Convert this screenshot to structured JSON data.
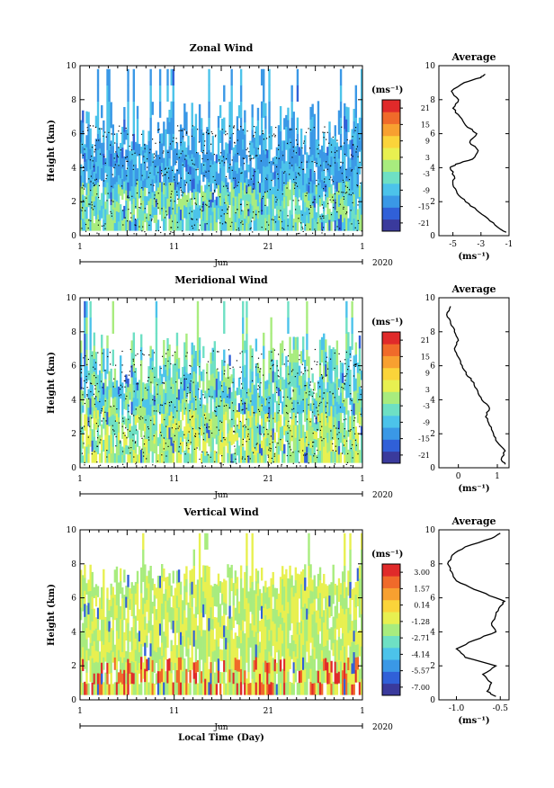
{
  "figure": {
    "bottom_xlabel": "Local Time (Day)",
    "colors": {
      "colormap": [
        "#3a3a9c",
        "#3060d8",
        "#3a98e6",
        "#4cc3ea",
        "#6ee0c4",
        "#a8ec7e",
        "#e8f050",
        "#fbd43a",
        "#f8a030",
        "#f06a2a",
        "#e02a2a"
      ],
      "background": "#ffffff",
      "contour": "#000000"
    }
  },
  "chart_data": [
    {
      "type": "heatmap",
      "title": "Zonal Wind",
      "xlabel": "Jun",
      "year_label": "2020",
      "ylabel": "Height (km)",
      "xticks": [
        "1",
        "11",
        "21",
        "1"
      ],
      "yticks": [
        "0",
        "2",
        "4",
        "6",
        "8",
        "10"
      ],
      "ylim": [
        0,
        10
      ],
      "colorbar": {
        "unit": "(ms⁻¹)",
        "labels": [
          "21",
          "15",
          "9",
          "3",
          "-3",
          "-9",
          "-15",
          "-21"
        ],
        "range": [
          -24,
          24
        ]
      },
      "profile": {
        "title": "Average",
        "xlabel": "(ms⁻¹)",
        "xticks": [
          "-5",
          "-3",
          "-1"
        ],
        "xlim": [
          -6,
          -1
        ],
        "yticks": [
          "0",
          "2",
          "4",
          "6",
          "8",
          "10"
        ],
        "heights": [
          0.2,
          0.5,
          1.0,
          1.5,
          2.0,
          2.5,
          3.0,
          3.5,
          4.0,
          4.2,
          4.5,
          5.0,
          5.5,
          6.0,
          6.5,
          7.0,
          7.5,
          8.0,
          8.5,
          9.0,
          9.3,
          9.5
        ],
        "values": [
          -1.2,
          -1.8,
          -2.5,
          -3.3,
          -4.1,
          -4.7,
          -5.0,
          -4.9,
          -5.2,
          -4.8,
          -3.6,
          -3.2,
          -3.8,
          -3.3,
          -4.1,
          -4.5,
          -5.0,
          -4.6,
          -5.1,
          -4.2,
          -3.0,
          -2.7
        ]
      }
    },
    {
      "type": "heatmap",
      "title": "Meridional Wind",
      "xlabel": "Jun",
      "year_label": "2020",
      "ylabel": "Height (km)",
      "xticks": [
        "1",
        "11",
        "21",
        "1"
      ],
      "yticks": [
        "0",
        "2",
        "4",
        "6",
        "8",
        "10"
      ],
      "ylim": [
        0,
        10
      ],
      "colorbar": {
        "unit": "(ms⁻¹)",
        "labels": [
          "21",
          "15",
          "9",
          "3",
          "-3",
          "-9",
          "-15",
          "-21"
        ],
        "range": [
          -24,
          24
        ]
      },
      "profile": {
        "title": "Average",
        "xlabel": "(ms⁻¹)",
        "xticks": [
          "0",
          "1"
        ],
        "xlim": [
          -0.5,
          1.3
        ],
        "yticks": [
          "0",
          "2",
          "4",
          "6",
          "8",
          "10"
        ],
        "heights": [
          0.2,
          0.5,
          1.0,
          1.5,
          2.0,
          2.5,
          3.0,
          3.5,
          4.0,
          4.5,
          5.0,
          5.5,
          6.0,
          6.5,
          7.0,
          7.5,
          8.0,
          8.5,
          9.0,
          9.5
        ],
        "values": [
          1.2,
          1.1,
          1.2,
          1.0,
          0.9,
          0.8,
          0.7,
          0.8,
          0.6,
          0.5,
          0.4,
          0.2,
          0.1,
          0.0,
          -0.1,
          0.0,
          -0.1,
          -0.2,
          -0.3,
          -0.2
        ]
      }
    },
    {
      "type": "heatmap",
      "title": "Vertical Wind",
      "xlabel": "Jun",
      "year_label": "2020",
      "ylabel": "Height (km)",
      "xticks": [
        "1",
        "11",
        "21",
        "1"
      ],
      "yticks": [
        "0",
        "2",
        "4",
        "6",
        "8",
        "10"
      ],
      "ylim": [
        0,
        10
      ],
      "colorbar": {
        "unit": "(ms⁻¹)",
        "labels": [
          "3.00",
          "1.57",
          "0.14",
          "-1.28",
          "-2.71",
          "-4.14",
          "-5.57",
          "-7.00"
        ],
        "range": [
          -7.5,
          3.5
        ]
      },
      "profile": {
        "title": "Average",
        "xlabel": "(ms⁻¹)",
        "xticks": [
          "-1.0",
          "-0.5"
        ],
        "xlim": [
          -1.2,
          -0.4
        ],
        "yticks": [
          "0",
          "2",
          "4",
          "6",
          "8",
          "10"
        ],
        "heights": [
          0.2,
          0.5,
          1.0,
          1.5,
          2.0,
          2.5,
          3.0,
          3.5,
          4.0,
          4.5,
          5.0,
          5.5,
          5.8,
          6.0,
          6.5,
          7.0,
          7.5,
          8.0,
          8.5,
          9.0,
          9.5,
          9.8
        ],
        "values": [
          -0.55,
          -0.65,
          -0.6,
          -0.7,
          -0.55,
          -0.9,
          -1.0,
          -0.8,
          -0.55,
          -0.6,
          -0.55,
          -0.5,
          -0.45,
          -0.55,
          -0.8,
          -1.0,
          -1.05,
          -1.1,
          -1.05,
          -0.9,
          -0.6,
          -0.5
        ]
      }
    }
  ]
}
